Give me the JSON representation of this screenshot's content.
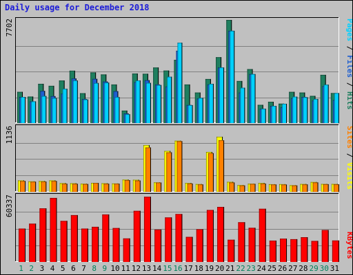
{
  "title": "Daily usage for December 2018",
  "colors": {
    "hits": "#1f7f5f",
    "files": "#1f5fd0",
    "pages": "#00d0ff",
    "visits": "#ffff00",
    "sites": "#ff8000",
    "kbytes": "#ff0000",
    "grid": "#808080",
    "panel": "#c0c0c0"
  },
  "chart_data": [
    {
      "type": "bar",
      "categories": [
        "1",
        "2",
        "3",
        "4",
        "5",
        "6",
        "7",
        "8",
        "9",
        "10",
        "11",
        "12",
        "13",
        "14",
        "15",
        "16",
        "17",
        "18",
        "19",
        "20",
        "21",
        "22",
        "23",
        "24",
        "25",
        "26",
        "27",
        "28",
        "29",
        "30",
        "31"
      ],
      "weekend_days": [
        "1",
        "2",
        "8",
        "9",
        "15",
        "16",
        "22",
        "23",
        "29",
        "30"
      ],
      "ymax_label": "7702",
      "ylim": [
        0,
        7702
      ],
      "legend": [
        "Pages",
        "Files",
        "Hits"
      ],
      "series": [
        {
          "name": "Hits",
          "values": [
            2330,
            1980,
            2930,
            2780,
            3180,
            3910,
            2230,
            3780,
            3630,
            2880,
            930,
            3700,
            3680,
            4150,
            3920,
            4720,
            2880,
            2280,
            3290,
            4920,
            7702,
            3140,
            4030,
            1360,
            1590,
            1450,
            2330,
            2280,
            2030,
            3600,
            2240
          ]
        },
        {
          "name": "Files",
          "values": [
            1950,
            1620,
            2400,
            2010,
            2200,
            3330,
            1800,
            3300,
            3100,
            2380,
            720,
            3060,
            3200,
            2880,
            2730,
            5400,
            1350,
            1830,
            2880,
            4150,
            6890,
            2280,
            3660,
            1070,
            1280,
            1180,
            1860,
            1950,
            1680,
            2760,
            1720
          ]
        },
        {
          "name": "Pages",
          "values": [
            1950,
            1620,
            2020,
            1870,
            2560,
            3180,
            1760,
            2990,
            3020,
            1940,
            660,
            3180,
            3000,
            2840,
            3460,
            6000,
            1340,
            1880,
            2930,
            4150,
            6890,
            2640,
            3660,
            1070,
            1280,
            1440,
            1970,
            1930,
            1800,
            2870,
            2240
          ]
        }
      ]
    },
    {
      "type": "bar",
      "categories": [
        "1",
        "2",
        "3",
        "4",
        "5",
        "6",
        "7",
        "8",
        "9",
        "10",
        "11",
        "12",
        "13",
        "14",
        "15",
        "16",
        "17",
        "18",
        "19",
        "20",
        "21",
        "22",
        "23",
        "24",
        "25",
        "26",
        "27",
        "28",
        "29",
        "30",
        "31"
      ],
      "ymax_label": "1136",
      "ylim": [
        0,
        1136
      ],
      "legend": [
        "Sites",
        "Visits"
      ],
      "series": [
        {
          "name": "Visits",
          "values": [
            201,
            184,
            190,
            201,
            153,
            151,
            143,
            157,
            151,
            147,
            215,
            212,
            820,
            167,
            719,
            899,
            156,
            137,
            701,
            968,
            176,
            119,
            143,
            155,
            134,
            135,
            117,
            138,
            173,
            139,
            139
          ]
        },
        {
          "name": "Sites",
          "values": [
            190,
            178,
            180,
            190,
            142,
            141,
            137,
            155,
            142,
            143,
            205,
            198,
            780,
            163,
            694,
            890,
            146,
            130,
            680,
            906,
            164,
            112,
            140,
            145,
            129,
            128,
            112,
            130,
            165,
            134,
            132
          ]
        }
      ]
    },
    {
      "type": "bar",
      "categories": [
        "1",
        "2",
        "3",
        "4",
        "5",
        "6",
        "7",
        "8",
        "9",
        "10",
        "11",
        "12",
        "13",
        "14",
        "15",
        "16",
        "17",
        "18",
        "19",
        "20",
        "21",
        "22",
        "23",
        "24",
        "25",
        "26",
        "27",
        "28",
        "29",
        "30",
        "31"
      ],
      "ymax_label": "60337",
      "ylim": [
        0,
        60337
      ],
      "legend": [
        "KBytes"
      ],
      "series": [
        {
          "name": "KBytes",
          "values": [
            30500,
            35000,
            49000,
            58500,
            37500,
            42800,
            30500,
            32100,
            43400,
            31000,
            21500,
            46700,
            59600,
            29600,
            40700,
            43800,
            22900,
            29900,
            47500,
            50300,
            20300,
            36300,
            31200,
            48600,
            19500,
            21300,
            20800,
            22600,
            19200,
            29200,
            19600
          ]
        }
      ]
    }
  ]
}
